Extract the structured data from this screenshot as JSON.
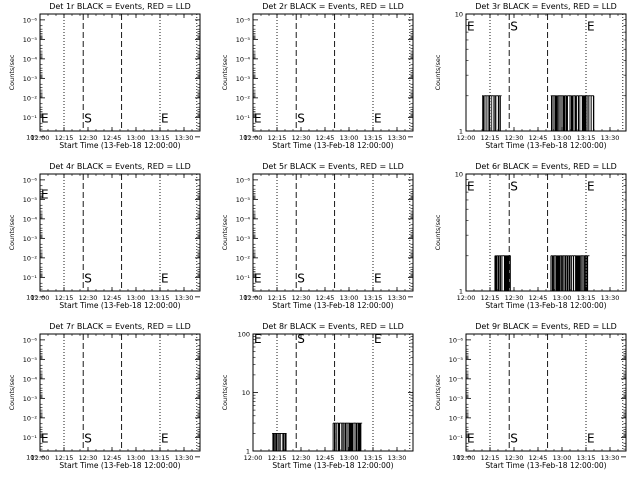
{
  "colors": {
    "background": "#ffffff",
    "events": "#000000",
    "lld": "#ff0000"
  },
  "markers": {
    "start": "S",
    "end": "E"
  },
  "vertical_lines": {
    "dotted": [
      "12:15",
      "13:15",
      "13:38"
    ],
    "dashed": [
      "12:27",
      "12:51"
    ]
  },
  "chart_data": [
    {
      "type": "line",
      "panel": "Det 1r",
      "title": "Det 1r BLACK = Events, RED = LLD",
      "xlabel": "Start Time (13-Feb-18 12:00:00)",
      "ylabel": "Counts/sec",
      "xticks": [
        "12:00",
        "12:15",
        "12:30",
        "12:45",
        "13:00",
        "13:15",
        "13:30"
      ],
      "yscale": "log",
      "ylim": [
        0.5,
        5e-07
      ],
      "yticks": [
        "10⁰",
        "10⁻¹",
        "10⁻²",
        "10⁻³",
        "10⁻⁴",
        "10⁻⁵",
        "10⁻⁶"
      ],
      "markers": [
        {
          "label": "E",
          "x": "12:00",
          "y": 0.1
        },
        {
          "label": "S",
          "x": "12:27",
          "y": 0.1
        },
        {
          "label": "E",
          "x": "13:15",
          "y": 0.1
        }
      ],
      "series": []
    },
    {
      "type": "line",
      "panel": "Det 2r",
      "title": "Det 2r BLACK = Events, RED = LLD",
      "xlabel": "Start Time (13-Feb-18 12:00:00)",
      "ylabel": "Counts/sec",
      "xticks": [
        "12:00",
        "12:15",
        "12:30",
        "12:45",
        "13:00",
        "13:15",
        "13:30"
      ],
      "yscale": "log",
      "ylim": [
        0.5,
        5e-07
      ],
      "yticks": [
        "10⁰",
        "10⁻¹",
        "10⁻²",
        "10⁻³",
        "10⁻⁴",
        "10⁻⁵",
        "10⁻⁶"
      ],
      "markers": [
        {
          "label": "E",
          "x": "12:00",
          "y": 0.1
        },
        {
          "label": "S",
          "x": "12:27",
          "y": 0.1
        },
        {
          "label": "E",
          "x": "13:15",
          "y": 0.1
        }
      ],
      "series": []
    },
    {
      "type": "line",
      "panel": "Det 3r",
      "title": "Det 3r BLACK = Events, RED = LLD",
      "xlabel": "Start Time (13-Feb-18 12:00:00)",
      "ylabel": "Counts/sec",
      "xticks": [
        "12:00",
        "12:15",
        "12:30",
        "12:45",
        "13:00",
        "13:15",
        "13:30"
      ],
      "yscale": "log",
      "ylim": [
        1,
        10
      ],
      "yticks": [
        "1",
        "10"
      ],
      "markers": [
        {
          "label": "E",
          "x": "12:00",
          "y": 8
        },
        {
          "label": "S",
          "x": "12:27",
          "y": 8
        },
        {
          "label": "E",
          "x": "13:15",
          "y": 8
        }
      ],
      "series": [
        {
          "bursts": [
            [
              "12:10",
              "12:22"
            ],
            [
              "12:53",
              "13:20"
            ]
          ],
          "level": 2
        }
      ]
    },
    {
      "type": "line",
      "panel": "Det 4r",
      "title": "Det 4r BLACK = Events, RED = LLD",
      "xlabel": "Start Time (13-Feb-18 12:00:00)",
      "ylabel": "Counts/sec",
      "xticks": [
        "12:00",
        "12:15",
        "12:30",
        "12:45",
        "13:00",
        "13:15",
        "13:30"
      ],
      "yscale": "log",
      "ylim": [
        0.5,
        5e-07
      ],
      "yticks": [
        "10⁰",
        "10⁻¹",
        "10⁻²",
        "10⁻³",
        "10⁻⁴",
        "10⁻⁵",
        "10⁻⁶"
      ],
      "markers": [
        {
          "label": "E",
          "x": "12:00",
          "y": 5e-06
        },
        {
          "label": "S",
          "x": "12:27",
          "y": 0.1
        },
        {
          "label": "E",
          "x": "13:15",
          "y": 0.1
        }
      ],
      "series": []
    },
    {
      "type": "line",
      "panel": "Det 5r",
      "title": "Det 5r BLACK = Events, RED = LLD",
      "xlabel": "Start Time (13-Feb-18 12:00:00)",
      "ylabel": "Counts/sec",
      "xticks": [
        "12:00",
        "12:15",
        "12:30",
        "12:45",
        "13:00",
        "13:15",
        "13:30"
      ],
      "yscale": "log",
      "ylim": [
        0.5,
        5e-07
      ],
      "yticks": [
        "10⁰",
        "10⁻¹",
        "10⁻²",
        "10⁻³",
        "10⁻⁴",
        "10⁻⁵",
        "10⁻⁶"
      ],
      "markers": [
        {
          "label": "E",
          "x": "12:00",
          "y": 0.1
        },
        {
          "label": "S",
          "x": "12:27",
          "y": 0.1
        },
        {
          "label": "E",
          "x": "13:15",
          "y": 0.1
        }
      ],
      "series": []
    },
    {
      "type": "line",
      "panel": "Det 6r",
      "title": "Det 6r BLACK = Events, RED = LLD",
      "xlabel": "Start Time (13-Feb-18 12:00:00)",
      "ylabel": "Counts/sec",
      "xticks": [
        "12:00",
        "12:15",
        "12:30",
        "12:45",
        "13:00",
        "13:15",
        "13:30"
      ],
      "yscale": "log",
      "ylim": [
        1,
        10
      ],
      "yticks": [
        "1",
        "10"
      ],
      "markers": [
        {
          "label": "E",
          "x": "12:00",
          "y": 8
        },
        {
          "label": "S",
          "x": "12:27",
          "y": 8
        },
        {
          "label": "E",
          "x": "13:15",
          "y": 8
        }
      ],
      "series": [
        {
          "bursts": [
            [
              "12:18",
              "12:28"
            ],
            [
              "12:53",
              "13:17"
            ]
          ],
          "level": 2
        }
      ]
    },
    {
      "type": "line",
      "panel": "Det 7r",
      "title": "Det 7r BLACK = Events, RED = LLD",
      "xlabel": "Start Time (13-Feb-18 12:00:00)",
      "ylabel": "Counts/sec",
      "xticks": [
        "12:00",
        "12:15",
        "12:30",
        "12:45",
        "13:00",
        "13:15",
        "13:30"
      ],
      "yscale": "log",
      "ylim": [
        0.5,
        5e-07
      ],
      "yticks": [
        "10⁰",
        "10⁻¹",
        "10⁻²",
        "10⁻³",
        "10⁻⁴",
        "10⁻⁵",
        "10⁻⁶"
      ],
      "markers": [
        {
          "label": "E",
          "x": "12:00",
          "y": 0.1
        },
        {
          "label": "S",
          "x": "12:27",
          "y": 0.1
        },
        {
          "label": "E",
          "x": "13:15",
          "y": 0.1
        }
      ],
      "series": []
    },
    {
      "type": "line",
      "panel": "Det 8r",
      "title": "Det 8r BLACK = Events, RED = LLD",
      "xlabel": "Start Time (13-Feb-18 12:00:00)",
      "ylabel": "Counts/sec",
      "xticks": [
        "12:00",
        "12:15",
        "12:30",
        "12:45",
        "13:00",
        "13:15",
        "13:30"
      ],
      "yscale": "log",
      "ylim": [
        1,
        100
      ],
      "yticks": [
        "1",
        "10",
        "100"
      ],
      "markers": [
        {
          "label": "E",
          "x": "12:00",
          "y": 85
        },
        {
          "label": "S",
          "x": "12:27",
          "y": 85
        },
        {
          "label": "E",
          "x": "13:15",
          "y": 85
        }
      ],
      "series": [
        {
          "bursts": [
            [
              "12:12",
              "12:21"
            ]
          ],
          "level": 2
        },
        {
          "bursts": [
            [
              "12:50",
              "13:08"
            ]
          ],
          "level": 3
        }
      ]
    },
    {
      "type": "line",
      "panel": "Det 9r",
      "title": "Det 9r BLACK = Events, RED = LLD",
      "xlabel": "Start Time (13-Feb-18 12:00:00)",
      "ylabel": "Counts/sec",
      "xticks": [
        "12:00",
        "12:15",
        "12:30",
        "12:45",
        "13:00",
        "13:15",
        "13:30"
      ],
      "yscale": "log",
      "ylim": [
        0.5,
        5e-07
      ],
      "yticks": [
        "10⁰",
        "10⁻¹",
        "10⁻²",
        "10⁻³",
        "10⁻⁴",
        "10⁻⁵",
        "10⁻⁶"
      ],
      "markers": [
        {
          "label": "E",
          "x": "12:00",
          "y": 0.1
        },
        {
          "label": "S",
          "x": "12:27",
          "y": 0.1
        },
        {
          "label": "E",
          "x": "13:15",
          "y": 0.1
        }
      ],
      "series": []
    }
  ]
}
